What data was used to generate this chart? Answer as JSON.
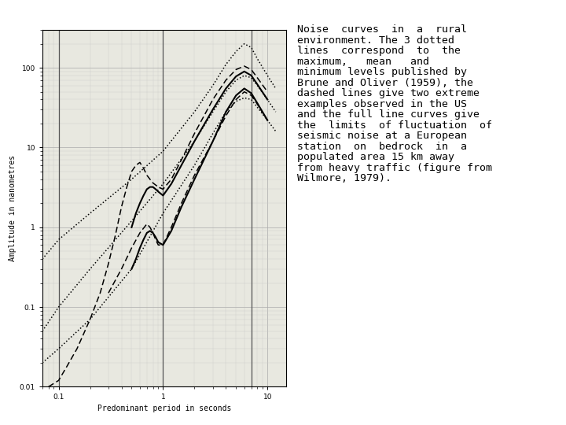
{
  "xlabel": "Predominant period in seconds",
  "ylabel": "Amplitude in nanometres",
  "xlim": [
    0.07,
    15
  ],
  "ylim": [
    0.01,
    300
  ],
  "chart_bg": "#e8e8e0",
  "fig_bg": "#ffffff",
  "vlines_x": [
    0.1,
    1.0,
    7.0
  ],
  "dot_max_x": [
    0.07,
    0.1,
    0.2,
    0.5,
    1.0,
    2.0,
    3.0,
    4.0,
    5.0,
    6.0,
    7.0,
    8.0,
    10.0,
    12.0
  ],
  "dot_max_y": [
    0.4,
    0.7,
    1.5,
    4.0,
    9.0,
    28,
    60,
    110,
    160,
    200,
    180,
    130,
    80,
    55
  ],
  "dot_mean_x": [
    0.07,
    0.1,
    0.2,
    0.5,
    1.0,
    2.0,
    3.0,
    4.0,
    5.0,
    6.0,
    7.0,
    8.0,
    10.0,
    12.0
  ],
  "dot_mean_y": [
    0.05,
    0.1,
    0.3,
    1.2,
    3.5,
    12,
    28,
    50,
    70,
    80,
    75,
    60,
    40,
    28
  ],
  "dot_min_x": [
    0.07,
    0.1,
    0.2,
    0.5,
    1.0,
    2.0,
    3.0,
    4.0,
    5.0,
    6.0,
    7.0,
    8.0,
    10.0,
    12.0
  ],
  "dot_min_y": [
    0.02,
    0.03,
    0.07,
    0.3,
    1.5,
    6.0,
    15,
    28,
    38,
    42,
    40,
    32,
    22,
    16
  ],
  "dash1_x": [
    0.08,
    0.1,
    0.12,
    0.15,
    0.2,
    0.25,
    0.3,
    0.35,
    0.4,
    0.45,
    0.5,
    0.55,
    0.6,
    0.65,
    0.7,
    0.75,
    0.8,
    0.9,
    1.0,
    1.2,
    1.5,
    2.0,
    3.0,
    4.0,
    5.0,
    6.0,
    7.0,
    8.0,
    10.0
  ],
  "dash1_y": [
    0.01,
    0.012,
    0.018,
    0.03,
    0.07,
    0.15,
    0.35,
    0.8,
    1.8,
    3.2,
    5.0,
    6.0,
    6.5,
    5.5,
    4.5,
    4.0,
    3.6,
    3.2,
    3.0,
    4.0,
    7.0,
    15,
    40,
    70,
    95,
    105,
    95,
    75,
    50
  ],
  "dash2_x": [
    0.3,
    0.4,
    0.5,
    0.6,
    0.7,
    0.75,
    0.8,
    0.85,
    0.9,
    1.0,
    1.2,
    1.5,
    2.0,
    3.0,
    4.0,
    5.0,
    6.0,
    7.0,
    8.0,
    10.0
  ],
  "dash2_y": [
    0.15,
    0.3,
    0.55,
    0.85,
    1.1,
    1.0,
    0.85,
    0.7,
    0.6,
    0.6,
    1.0,
    2.0,
    4.5,
    12,
    25,
    40,
    50,
    45,
    35,
    22
  ],
  "solid_upper_x": [
    0.5,
    0.55,
    0.6,
    0.65,
    0.7,
    0.75,
    0.8,
    0.85,
    0.9,
    1.0,
    1.2,
    1.5,
    2.0,
    3.0,
    4.0,
    5.0,
    6.0,
    7.0,
    8.0,
    10.0
  ],
  "solid_upper_y": [
    1.0,
    1.5,
    2.0,
    2.5,
    3.0,
    3.2,
    3.2,
    3.0,
    2.8,
    2.5,
    3.5,
    6.0,
    12,
    30,
    55,
    78,
    90,
    80,
    62,
    40
  ],
  "solid_lower_x": [
    0.5,
    0.55,
    0.6,
    0.65,
    0.7,
    0.75,
    0.8,
    0.85,
    0.9,
    1.0,
    1.2,
    1.5,
    2.0,
    3.0,
    4.0,
    5.0,
    6.0,
    7.0,
    8.0,
    10.0
  ],
  "solid_lower_y": [
    0.3,
    0.4,
    0.55,
    0.7,
    0.85,
    0.9,
    0.85,
    0.75,
    0.65,
    0.6,
    0.9,
    1.8,
    4.0,
    12,
    28,
    45,
    55,
    48,
    36,
    22
  ],
  "caption_lines": [
    "Noise  curves  in  a  rural",
    "environment. The 3 dotted",
    "lines  correspond  to  the",
    "maximum,   mean   and",
    "minimum levels published by",
    "Brune and Oliver (1959), the",
    "dashed lines give two extreme",
    "examples observed in the US",
    "and the full line curves give",
    "the  limits  of fluctuation  of",
    "seismic noise at a European",
    "station  on  bedrock  in  a",
    "populated area 15 km away",
    "from heavy traffic (figure from",
    "Wilmore, 1979)."
  ],
  "caption_fontsize": 9.5
}
